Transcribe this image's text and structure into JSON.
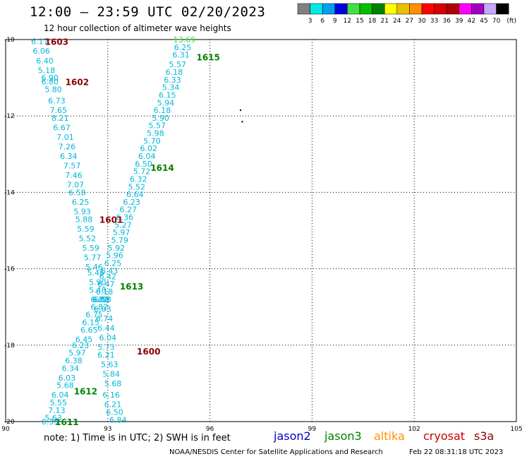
{
  "header": {
    "title": "12:00 – 23:59 UTC 02/20/2023",
    "subtitle": "12 hour collection of altimeter wave heights"
  },
  "legend": {
    "labels": [
      "3",
      "6",
      "9",
      "12",
      "15",
      "18",
      "21",
      "24",
      "27",
      "30",
      "33",
      "36",
      "39",
      "42",
      "45",
      "70"
    ],
    "unit": "(ft)",
    "colors": [
      "#808080",
      "#00e8e8",
      "#00a0f0",
      "#0000e0",
      "#40e040",
      "#00c000",
      "#008000",
      "#ffff00",
      "#e8c000",
      "#ff9000",
      "#ff0000",
      "#d80000",
      "#b00000",
      "#ff00ff",
      "#a000c0",
      "#c8a8ff",
      "#000000"
    ]
  },
  "axes": {
    "x_ticks": [
      "90",
      "93",
      "96",
      "99",
      "102",
      "105"
    ],
    "y_ticks": [
      "-10",
      "-12",
      "-14",
      "-16",
      "-18",
      "-20"
    ],
    "lon_range": [
      90,
      105
    ],
    "lat_range": [
      -20,
      -10
    ]
  },
  "colors": {
    "swh": "#00b8d8",
    "swh_light": "#40e040",
    "jason2": "#0000cc",
    "jason3": "#008000",
    "altika": "#ff9000",
    "cryosat": "#cc0000",
    "s3a": "#880000"
  },
  "tracks": [
    {
      "label": "1603",
      "color": "#880000",
      "lon": 91.5,
      "lat": -10.05
    },
    {
      "label": "1602",
      "color": "#880000",
      "lon": 92.1,
      "lat": -11.1
    },
    {
      "label": "1601",
      "color": "#880000",
      "lon": 93.1,
      "lat": -14.7
    },
    {
      "label": "1600",
      "color": "#880000",
      "lon": 94.2,
      "lat": -18.15
    },
    {
      "label": "1615",
      "color": "#008000",
      "lon": 95.95,
      "lat": -10.45
    },
    {
      "label": "1614",
      "color": "#008000",
      "lon": 94.6,
      "lat": -13.35
    },
    {
      "label": "1613",
      "color": "#008000",
      "lon": 93.7,
      "lat": -16.45
    },
    {
      "label": "1612",
      "color": "#008000",
      "lon": 92.35,
      "lat": -19.2
    },
    {
      "label": "1611",
      "color": "#008000",
      "lon": 91.8,
      "lat": -20.0
    }
  ],
  "swh_points": [
    {
      "v": "6.17",
      "lon": 91.0,
      "lat": -10.05
    },
    {
      "v": "6.06",
      "lon": 91.05,
      "lat": -10.3
    },
    {
      "v": "6.40",
      "lon": 91.15,
      "lat": -10.55
    },
    {
      "v": "5.18",
      "lon": 91.2,
      "lat": -10.8
    },
    {
      "v": "6.90",
      "lon": 91.3,
      "lat": -11.0
    },
    {
      "v": "6.80",
      "lon": 91.3,
      "lat": -11.1
    },
    {
      "v": "5.80",
      "lon": 91.4,
      "lat": -11.3
    },
    {
      "v": "6.73",
      "lon": 91.5,
      "lat": -11.6
    },
    {
      "v": "7.65",
      "lon": 91.55,
      "lat": -11.85
    },
    {
      "v": "8.21",
      "lon": 91.6,
      "lat": -12.05
    },
    {
      "v": "6.67",
      "lon": 91.65,
      "lat": -12.3
    },
    {
      "v": "7.01",
      "lon": 91.75,
      "lat": -12.55
    },
    {
      "v": "7.26",
      "lon": 91.8,
      "lat": -12.8
    },
    {
      "v": "6.34",
      "lon": 91.85,
      "lat": -13.05
    },
    {
      "v": "7.57",
      "lon": 91.95,
      "lat": -13.3
    },
    {
      "v": "7.46",
      "lon": 92.0,
      "lat": -13.55
    },
    {
      "v": "7.07",
      "lon": 92.05,
      "lat": -13.8
    },
    {
      "v": "6.58",
      "lon": 92.1,
      "lat": -14.0
    },
    {
      "v": "6.25",
      "lon": 92.2,
      "lat": -14.25
    },
    {
      "v": "5.93",
      "lon": 92.25,
      "lat": -14.5
    },
    {
      "v": "5.88",
      "lon": 92.3,
      "lat": -14.7
    },
    {
      "v": "5.59",
      "lon": 92.35,
      "lat": -14.95
    },
    {
      "v": "5.52",
      "lon": 92.4,
      "lat": -15.2
    },
    {
      "v": "5.59",
      "lon": 92.5,
      "lat": -15.45
    },
    {
      "v": "5.77",
      "lon": 92.55,
      "lat": -15.7
    },
    {
      "v": "5.46",
      "lon": 92.6,
      "lat": -15.95
    },
    {
      "v": "5.46",
      "lon": 92.65,
      "lat": -16.1
    },
    {
      "v": "5.90",
      "lon": 92.7,
      "lat": -16.35
    },
    {
      "v": "5.48",
      "lon": 92.7,
      "lat": -16.55
    },
    {
      "v": "6.82",
      "lon": 92.75,
      "lat": -16.8
    },
    {
      "v": "6.88",
      "lon": 92.8,
      "lat": -16.8
    },
    {
      "v": "6.82",
      "lon": 92.75,
      "lat": -17.0
    },
    {
      "v": "6.75",
      "lon": 92.6,
      "lat": -17.2
    },
    {
      "v": "6.15",
      "lon": 92.5,
      "lat": -17.4
    },
    {
      "v": "6.65",
      "lon": 92.45,
      "lat": -17.6
    },
    {
      "v": "6.45",
      "lon": 92.3,
      "lat": -17.85
    },
    {
      "v": "6.23",
      "lon": 92.2,
      "lat": -18.0
    },
    {
      "v": "5.97",
      "lon": 92.1,
      "lat": -18.2
    },
    {
      "v": "6.38",
      "lon": 92.0,
      "lat": -18.4
    },
    {
      "v": "6.34",
      "lon": 91.9,
      "lat": -18.6
    },
    {
      "v": "6.03",
      "lon": 91.8,
      "lat": -18.85
    },
    {
      "v": "5.68",
      "lon": 91.75,
      "lat": -19.05
    },
    {
      "v": "6.04",
      "lon": 91.6,
      "lat": -19.3
    },
    {
      "v": "5.55",
      "lon": 91.55,
      "lat": -19.5
    },
    {
      "v": "7.13",
      "lon": 91.5,
      "lat": -19.7
    },
    {
      "v": "5.63",
      "lon": 91.4,
      "lat": -19.9
    },
    {
      "v": "6.35",
      "lon": 91.3,
      "lat": -20.0
    },
    {
      "v": "6.25",
      "lon": 95.2,
      "lat": -10.2
    },
    {
      "v": "6.31",
      "lon": 95.15,
      "lat": -10.4
    },
    {
      "v": "5.57",
      "lon": 95.05,
      "lat": -10.65
    },
    {
      "v": "6.18",
      "lon": 94.95,
      "lat": -10.85
    },
    {
      "v": "6.33",
      "lon": 94.9,
      "lat": -11.05
    },
    {
      "v": "5.34",
      "lon": 94.85,
      "lat": -11.25
    },
    {
      "v": "6.15",
      "lon": 94.75,
      "lat": -11.45
    },
    {
      "v": "5.94",
      "lon": 94.7,
      "lat": -11.65
    },
    {
      "v": "6.18",
      "lon": 94.6,
      "lat": -11.85
    },
    {
      "v": "5.90",
      "lon": 94.55,
      "lat": -12.05
    },
    {
      "v": "5.57",
      "lon": 94.45,
      "lat": -12.25
    },
    {
      "v": "5.98",
      "lon": 94.4,
      "lat": -12.45
    },
    {
      "v": "5.70",
      "lon": 94.3,
      "lat": -12.65
    },
    {
      "v": "6.02",
      "lon": 94.2,
      "lat": -12.85
    },
    {
      "v": "6.04",
      "lon": 94.15,
      "lat": -13.05
    },
    {
      "v": "6.50",
      "lon": 94.05,
      "lat": -13.25
    },
    {
      "v": "5.72",
      "lon": 94.0,
      "lat": -13.45
    },
    {
      "v": "6.32",
      "lon": 93.9,
      "lat": -13.65
    },
    {
      "v": "5.52",
      "lon": 93.85,
      "lat": -13.85
    },
    {
      "v": "6.64",
      "lon": 93.8,
      "lat": -14.05
    },
    {
      "v": "6.23",
      "lon": 93.7,
      "lat": -14.25
    },
    {
      "v": "6.27",
      "lon": 93.6,
      "lat": -14.45
    },
    {
      "v": "6.36",
      "lon": 93.5,
      "lat": -14.65
    },
    {
      "v": "5.27",
      "lon": 93.45,
      "lat": -14.85
    },
    {
      "v": "5.97",
      "lon": 93.4,
      "lat": -15.05
    },
    {
      "v": "5.79",
      "lon": 93.35,
      "lat": -15.25
    },
    {
      "v": "5.92",
      "lon": 93.25,
      "lat": -15.45
    },
    {
      "v": "5.96",
      "lon": 93.2,
      "lat": -15.65
    },
    {
      "v": "6.25",
      "lon": 93.15,
      "lat": -15.85
    },
    {
      "v": "6.43",
      "lon": 93.05,
      "lat": -16.05
    },
    {
      "v": "6.42",
      "lon": 93.0,
      "lat": -16.2
    },
    {
      "v": "6.47",
      "lon": 92.95,
      "lat": -16.4
    },
    {
      "v": "6.18",
      "lon": 92.9,
      "lat": -16.6
    },
    {
      "v": "6.58",
      "lon": 92.85,
      "lat": -16.8
    },
    {
      "v": "6.03",
      "lon": 92.85,
      "lat": -17.05
    },
    {
      "v": "6.74",
      "lon": 92.9,
      "lat": -17.3
    },
    {
      "v": "6.44",
      "lon": 92.95,
      "lat": -17.55
    },
    {
      "v": "6.04",
      "lon": 93.0,
      "lat": -17.8
    },
    {
      "v": "5.73",
      "lon": 92.95,
      "lat": -18.05
    },
    {
      "v": "6.21",
      "lon": 92.95,
      "lat": -18.25
    },
    {
      "v": "5.63",
      "lon": 93.05,
      "lat": -18.5
    },
    {
      "v": "5.84",
      "lon": 93.1,
      "lat": -18.75
    },
    {
      "v": "5.68",
      "lon": 93.15,
      "lat": -19.0
    },
    {
      "v": "6.16",
      "lon": 93.1,
      "lat": -19.3
    },
    {
      "v": "6.21",
      "lon": 93.15,
      "lat": -19.55
    },
    {
      "v": "6.50",
      "lon": 93.2,
      "lat": -19.75
    },
    {
      "v": "6.84",
      "lon": 93.3,
      "lat": -19.95
    }
  ],
  "swh_light_points": [
    {
      "v": "13.69",
      "lon": 95.25,
      "lat": -10.0
    }
  ],
  "island_markers": [
    {
      "lon": 96.9,
      "lat": -11.85
    },
    {
      "lon": 96.95,
      "lat": -12.15
    }
  ],
  "footer": {
    "note": "note: 1) Time is in UTC; 2) SWH is in feet",
    "satellites": [
      "jason2",
      "jason3",
      "altika",
      "cryosat",
      "s3a"
    ],
    "credit": "NOAA/NESDIS Center for Satellite Applications and Research",
    "timestamp": "Feb 22 08:31:18 UTC 2023"
  }
}
